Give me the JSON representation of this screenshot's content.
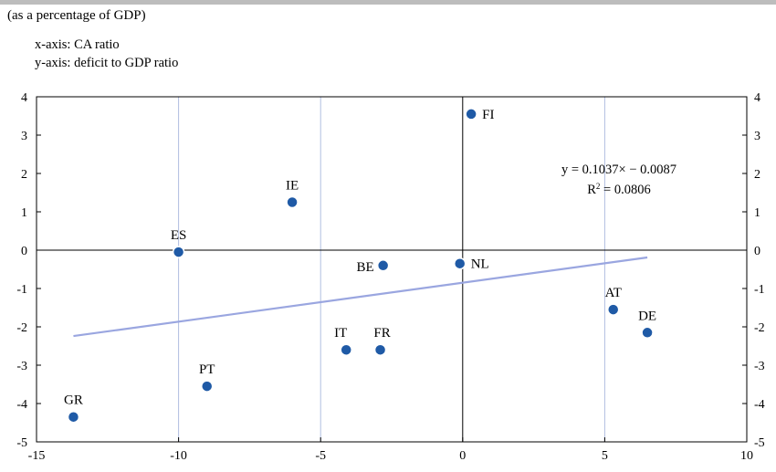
{
  "page": {
    "subtitle": "(as a percentage of GDP)",
    "x_axis_note": "x-axis: CA ratio",
    "y_axis_note": "y-axis: deficit to GDP ratio"
  },
  "colors": {
    "points": "#1f5aa6",
    "trendline": "#9aa6e0",
    "grid": "#b0bee0",
    "axis": "#000000",
    "header_bar": "#bdbdbd"
  },
  "chart_data": {
    "type": "scatter",
    "title": "",
    "xlabel": "",
    "ylabel": "",
    "xlim": [
      -15,
      10
    ],
    "ylim": [
      -5,
      4
    ],
    "xticks": [
      -15,
      -10,
      -5,
      0,
      5,
      10
    ],
    "yticks": [
      4,
      3,
      2,
      1,
      0,
      -1,
      -2,
      -3,
      -4,
      -5
    ],
    "grid": true,
    "dual_y_axis_labels": true,
    "points": [
      {
        "label": "FI",
        "x": 0.3,
        "y": 3.55
      },
      {
        "label": "IE",
        "x": -6.0,
        "y": 1.25
      },
      {
        "label": "ES",
        "x": -10.0,
        "y": -0.05
      },
      {
        "label": "BE",
        "x": -2.8,
        "y": -0.4
      },
      {
        "label": "NL",
        "x": -0.1,
        "y": -0.35
      },
      {
        "label": "AT",
        "x": 5.3,
        "y": -1.55
      },
      {
        "label": "DE",
        "x": 6.5,
        "y": -2.15
      },
      {
        "label": "IT",
        "x": -4.1,
        "y": -2.6
      },
      {
        "label": "FR",
        "x": -2.9,
        "y": -2.6
      },
      {
        "label": "PT",
        "x": -9.0,
        "y": -3.55
      },
      {
        "label": "GR",
        "x": -13.7,
        "y": -4.35
      }
    ],
    "trendline": {
      "x": [
        -13.7,
        6.5
      ],
      "y": [
        -2.24,
        -0.19
      ],
      "equation": "y = 0.1037× − 0.0087",
      "r2_label": "R",
      "r2_sup": "2",
      "r2_value": " = 0.0806"
    }
  }
}
